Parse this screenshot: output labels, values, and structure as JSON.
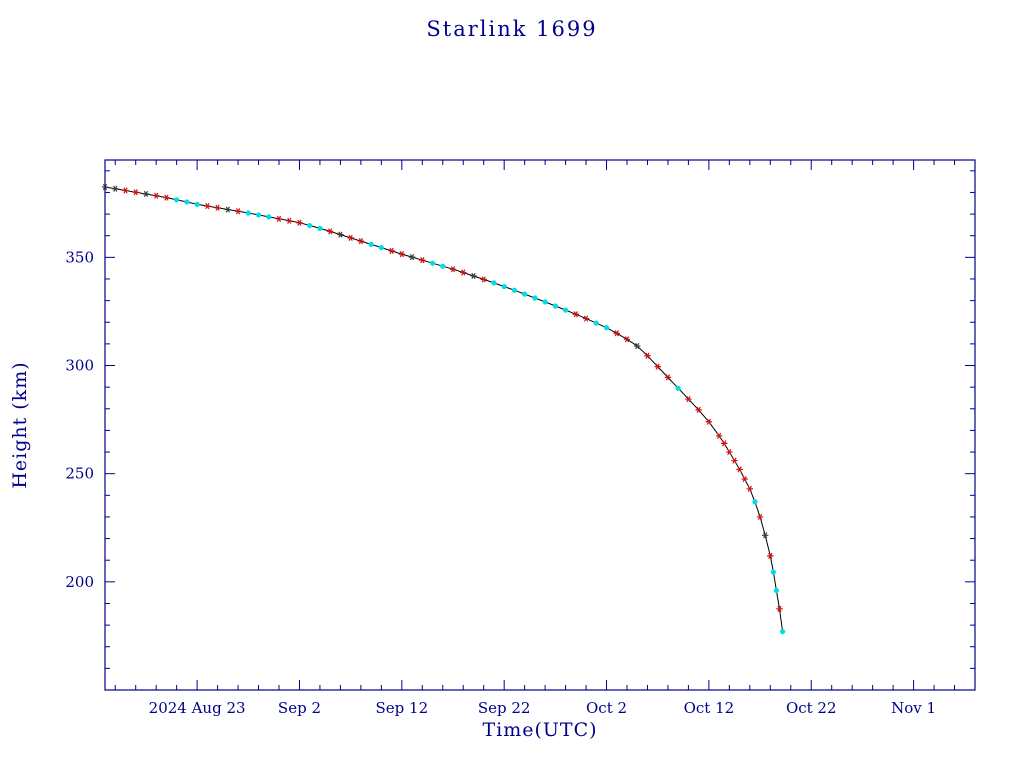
{
  "page": {
    "background": "#ffffff"
  },
  "chart_data": {
    "type": "line",
    "title": "Starlink 1699",
    "xlabel": "Time(UTC)",
    "ylabel": "Height (km)",
    "legend": "none",
    "grid": false,
    "axis_color": "#00008b",
    "line_color": "#000000",
    "marker_colors": {
      "red": "#cc1111",
      "cyan": "#00dde8",
      "dark": "#3a3a3a"
    },
    "x_axis": {
      "min_day": 0,
      "max_day": 85,
      "epoch_note": "day 0 = left edge (approx 2024 Aug 14)",
      "major_ticks": [
        {
          "day": 9,
          "label": "2024 Aug 23"
        },
        {
          "day": 19,
          "label": "Sep 2"
        },
        {
          "day": 29,
          "label": "Sep 12"
        },
        {
          "day": 39,
          "label": "Sep 22"
        },
        {
          "day": 49,
          "label": "Oct 2"
        },
        {
          "day": 59,
          "label": "Oct 12"
        },
        {
          "day": 69,
          "label": "Oct 22"
        },
        {
          "day": 79,
          "label": "Nov 1"
        }
      ],
      "minor_step_days": 2
    },
    "y_axis": {
      "min_km": 150,
      "max_km": 395,
      "major_ticks_km": [
        200,
        250,
        300,
        350
      ],
      "minor_step_km": 10
    },
    "point_format": [
      "days_since_left_edge",
      "height_km",
      "marker_color"
    ],
    "points": [
      [
        0,
        382.5,
        "dark"
      ],
      [
        1,
        381.7,
        "dark"
      ],
      [
        2,
        380.9,
        "red"
      ],
      [
        3,
        380.1,
        "red"
      ],
      [
        4,
        379.3,
        "dark"
      ],
      [
        5,
        378.5,
        "red"
      ],
      [
        6,
        377.6,
        "red"
      ],
      [
        7,
        376.6,
        "cyan"
      ],
      [
        8,
        375.6,
        "cyan"
      ],
      [
        9,
        374.5,
        "cyan"
      ],
      [
        10,
        373.7,
        "red"
      ],
      [
        11,
        372.9,
        "red"
      ],
      [
        12,
        372.1,
        "dark"
      ],
      [
        13,
        371.3,
        "red"
      ],
      [
        14,
        370.5,
        "cyan"
      ],
      [
        15,
        369.6,
        "cyan"
      ],
      [
        16,
        368.7,
        "cyan"
      ],
      [
        17,
        367.8,
        "red"
      ],
      [
        18,
        366.9,
        "red"
      ],
      [
        19,
        366.0,
        "red"
      ],
      [
        20,
        364.7,
        "cyan"
      ],
      [
        21,
        363.4,
        "cyan"
      ],
      [
        22,
        362.0,
        "red"
      ],
      [
        23,
        360.5,
        "dark"
      ],
      [
        24,
        359.0,
        "red"
      ],
      [
        25,
        357.5,
        "red"
      ],
      [
        26,
        356.0,
        "cyan"
      ],
      [
        27,
        354.5,
        "cyan"
      ],
      [
        28,
        353.0,
        "red"
      ],
      [
        29,
        351.5,
        "red"
      ],
      [
        30,
        350.1,
        "dark"
      ],
      [
        31,
        348.7,
        "red"
      ],
      [
        32,
        347.3,
        "cyan"
      ],
      [
        33,
        345.9,
        "cyan"
      ],
      [
        34,
        344.5,
        "red"
      ],
      [
        35,
        343.0,
        "red"
      ],
      [
        36,
        341.4,
        "dark"
      ],
      [
        37,
        339.8,
        "red"
      ],
      [
        38,
        338.2,
        "cyan"
      ],
      [
        39,
        336.5,
        "cyan"
      ],
      [
        40,
        334.8,
        "cyan"
      ],
      [
        41,
        333.0,
        "cyan"
      ],
      [
        42,
        331.2,
        "cyan"
      ],
      [
        43,
        329.4,
        "cyan"
      ],
      [
        44,
        327.5,
        "cyan"
      ],
      [
        45,
        325.6,
        "cyan"
      ],
      [
        46,
        323.7,
        "red"
      ],
      [
        47,
        321.7,
        "red"
      ],
      [
        48,
        319.6,
        "cyan"
      ],
      [
        49,
        317.5,
        "cyan"
      ],
      [
        50,
        314.9,
        "red"
      ],
      [
        51,
        312.1,
        "red"
      ],
      [
        52,
        309.0,
        "dark"
      ],
      [
        53,
        304.5,
        "red"
      ],
      [
        54,
        299.5,
        "red"
      ],
      [
        55,
        294.5,
        "red"
      ],
      [
        56,
        289.5,
        "cyan"
      ],
      [
        57,
        284.5,
        "red"
      ],
      [
        58,
        279.5,
        "red"
      ],
      [
        59,
        274.0,
        "red"
      ],
      [
        60,
        267.5,
        "red"
      ],
      [
        60.5,
        264.0,
        "red"
      ],
      [
        61,
        260.0,
        "red"
      ],
      [
        61.5,
        256.0,
        "red"
      ],
      [
        62,
        252.0,
        "red"
      ],
      [
        62.5,
        247.5,
        "red"
      ],
      [
        63,
        243.0,
        "red"
      ],
      [
        63.5,
        237.0,
        "cyan"
      ],
      [
        64,
        230.0,
        "red"
      ],
      [
        64.5,
        221.5,
        "dark"
      ],
      [
        65,
        212.0,
        "red"
      ],
      [
        65.3,
        204.5,
        "cyan"
      ],
      [
        65.6,
        196.0,
        "cyan"
      ],
      [
        65.9,
        187.5,
        "red"
      ],
      [
        66.2,
        177.0,
        "cyan"
      ]
    ]
  }
}
